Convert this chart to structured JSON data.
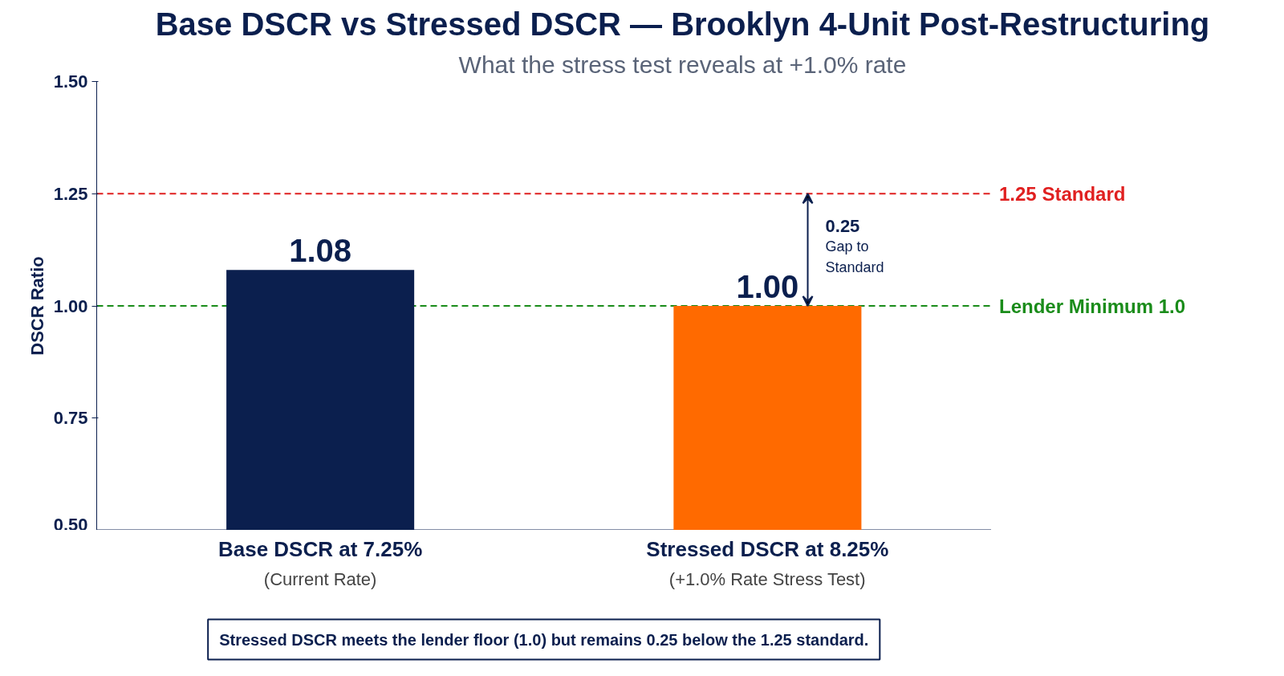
{
  "chart_data": {
    "type": "bar",
    "title": "Base DSCR vs Stressed DSCR — Brooklyn 4-Unit Post-Restructuring",
    "subtitle": "What the stress test reveals at +1.0% rate",
    "ylabel": "DSCR Ratio",
    "categories": [
      "Base DSCR at 7.25%\n(Current Rate)",
      "Stressed DSCR at 8.25%\n(+1.0% Rate Stress Test)"
    ],
    "values": [
      1.08,
      1.0
    ],
    "colors": [
      "#0b1f4e",
      "#ff6a00"
    ],
    "value_labels": [
      "1.08",
      "1.00"
    ],
    "ylim": [
      0.5,
      1.5
    ],
    "yticks": [
      {
        "value": 0.5,
        "label": "0.50"
      },
      {
        "value": 0.75,
        "label": "0.75"
      },
      {
        "value": 1.0,
        "label": "1.00"
      },
      {
        "value": 1.25,
        "label": "1.25"
      },
      {
        "value": 1.5,
        "label": "1.50"
      }
    ],
    "ref_lines": [
      {
        "axis": "y",
        "value": 1.25,
        "label": "1.25 Standard",
        "color": "#e02020",
        "line_style": "dashed"
      },
      {
        "axis": "y",
        "value": 1.0,
        "label": "Lender Minimum 1.0",
        "color": "#1a8c1a",
        "line_style": "dashed"
      }
    ],
    "annotations": [
      "0.25\nGap to\nStandard",
      "Stressed DSCR meets the lender floor (1.0) but remains 0.25 below the 1.25 standard."
    ],
    "grid": false
  }
}
